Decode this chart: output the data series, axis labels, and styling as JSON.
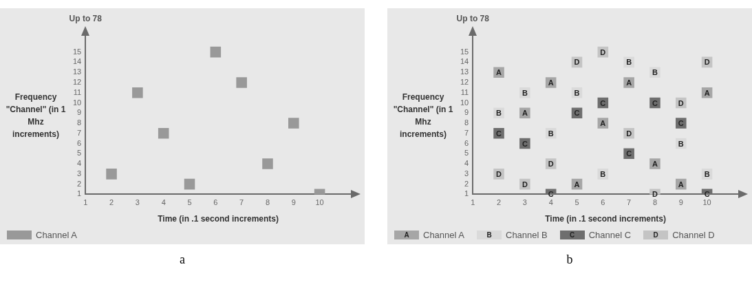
{
  "chart_data": [
    {
      "type": "scatter",
      "title": "a",
      "xlabel": "Time (in .1 second increments)",
      "ylabel": "Frequency \"Channel\" (in 1 Mhz increments)",
      "annotations": [
        "Up to 78"
      ],
      "marker": "square",
      "legend": "bottom left",
      "grid": false,
      "xlim": [
        1,
        11.2
      ],
      "xticks": [
        1,
        2,
        3,
        4,
        5,
        6,
        7,
        8,
        9,
        10
      ],
      "ylim": [
        1,
        16.6
      ],
      "yticks": [
        1,
        2,
        3,
        4,
        5,
        6,
        7,
        8,
        9,
        10,
        11,
        12,
        13,
        14,
        15
      ],
      "series": [
        {
          "name": "Channel A",
          "color": "#999999",
          "x": [
            2,
            3,
            4,
            5,
            6,
            7,
            8,
            9,
            10
          ],
          "values": [
            3,
            11,
            7,
            2,
            15,
            12,
            4,
            8,
            1
          ]
        }
      ]
    },
    {
      "type": "scatter",
      "title": "b",
      "xlabel": "Time (in .1 second increments)",
      "ylabel": "Frequency \"Channel\" (in 1 Mhz increments)",
      "annotations": [
        "Up to 78"
      ],
      "marker": "square",
      "legend": "bottom left",
      "grid": false,
      "xlim": [
        1,
        11.2
      ],
      "xticks": [
        1,
        2,
        3,
        4,
        5,
        6,
        7,
        8,
        9,
        10
      ],
      "ylim": [
        1,
        16.6
      ],
      "yticks": [
        1,
        2,
        3,
        4,
        5,
        6,
        7,
        8,
        9,
        10,
        11,
        12,
        13,
        14,
        15
      ],
      "series": [
        {
          "name": "Channel A",
          "color": "#a6a6a6",
          "x": [
            2,
            3,
            4,
            5,
            6,
            7,
            8,
            9,
            10
          ],
          "values": [
            13,
            9,
            12,
            2,
            8,
            12,
            4,
            2,
            11
          ],
          "value_labels": [
            "A",
            "A",
            "A",
            "A",
            "A",
            "A",
            "A",
            "A",
            "A"
          ]
        },
        {
          "name": "Channel B",
          "color": "#dadada",
          "x": [
            2,
            3,
            4,
            5,
            6,
            7,
            8,
            9,
            10
          ],
          "values": [
            9,
            11,
            7,
            11,
            3,
            14,
            13,
            6,
            3
          ],
          "value_labels": [
            "B",
            "B",
            "B",
            "B",
            "B",
            "B",
            "B",
            "B",
            "B"
          ]
        },
        {
          "name": "Channel C",
          "color": "#6e6e6e",
          "x": [
            2,
            3,
            4,
            5,
            6,
            7,
            8,
            9,
            10
          ],
          "values": [
            7,
            6,
            1,
            9,
            10,
            5,
            10,
            8,
            1
          ],
          "value_labels": [
            "C",
            "C",
            "C",
            "C",
            "C",
            "C",
            "C",
            "C",
            "C"
          ]
        },
        {
          "name": "Channel D",
          "color": "#c4c4c4",
          "x": [
            2,
            3,
            4,
            5,
            6,
            7,
            8,
            9,
            10
          ],
          "values": [
            3,
            2,
            4,
            14,
            15,
            7,
            1,
            10,
            14
          ],
          "value_labels": [
            "D",
            "D",
            "D",
            "D",
            "D",
            "D",
            "D",
            "D",
            "D"
          ]
        }
      ]
    }
  ]
}
